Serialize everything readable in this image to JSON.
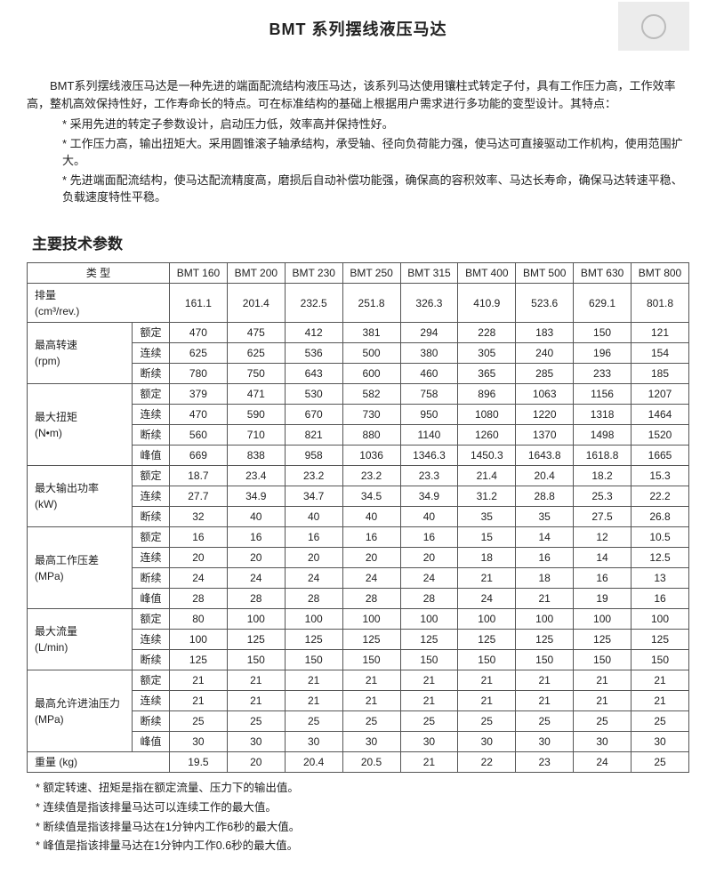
{
  "title": "BMT  系列摆线液压马达",
  "intro": "BMT系列摆线液压马达是一种先进的端面配流结构液压马达，该系列马达使用镶柱式转定子付，具有工作压力高，工作效率高，整机高效保持性好，工作寿命长的特点。可在标准结构的基础上根据用户需求进行多功能的变型设计。其特点：",
  "features": [
    "采用先进的转定子参数设计，启动压力低，效率高并保持性好。",
    "工作压力高，输出扭矩大。采用圆锥滚子轴承结构，承受轴、径向负荷能力强，使马达可直接驱动工作机构，使用范围扩大。",
    "先进端面配流结构，使马达配流精度高，磨损后自动补偿功能强，确保高的容积效率、马达长寿命，确保马达转速平稳、负载速度特性平稳。"
  ],
  "section_header": "主要技术参数",
  "type_label": "类    型",
  "models": [
    "BMT 160",
    "BMT 200",
    "BMT 230",
    "BMT 250",
    "BMT 315",
    "BMT 400",
    "BMT 500",
    "BMT 630",
    "BMT 800"
  ],
  "disp_label": "排量\n(cm³/rev.)",
  "disp_vals": [
    "161.1",
    "201.4",
    "232.5",
    "251.8",
    "326.3",
    "410.9",
    "523.6",
    "629.1",
    "801.8"
  ],
  "groups": [
    {
      "label": "最高转速\n(rpm)",
      "subs": [
        "额定",
        "连续",
        "断续"
      ],
      "rows": [
        [
          "470",
          "475",
          "412",
          "381",
          "294",
          "228",
          "183",
          "150",
          "121"
        ],
        [
          "625",
          "625",
          "536",
          "500",
          "380",
          "305",
          "240",
          "196",
          "154"
        ],
        [
          "780",
          "750",
          "643",
          "600",
          "460",
          "365",
          "285",
          "233",
          "185"
        ]
      ]
    },
    {
      "label": "最大扭矩\n(N•m)",
      "subs": [
        "额定",
        "连续",
        "断续",
        "峰值"
      ],
      "rows": [
        [
          "379",
          "471",
          "530",
          "582",
          "758",
          "896",
          "1063",
          "1156",
          "1207"
        ],
        [
          "470",
          "590",
          "670",
          "730",
          "950",
          "1080",
          "1220",
          "1318",
          "1464"
        ],
        [
          "560",
          "710",
          "821",
          "880",
          "1140",
          "1260",
          "1370",
          "1498",
          "1520"
        ],
        [
          "669",
          "838",
          "958",
          "1036",
          "1346.3",
          "1450.3",
          "1643.8",
          "1618.8",
          "1665"
        ]
      ]
    },
    {
      "label": "最大输出功率\n(kW)",
      "subs": [
        "额定",
        "连续",
        "断续"
      ],
      "rows": [
        [
          "18.7",
          "23.4",
          "23.2",
          "23.2",
          "23.3",
          "21.4",
          "20.4",
          "18.2",
          "15.3"
        ],
        [
          "27.7",
          "34.9",
          "34.7",
          "34.5",
          "34.9",
          "31.2",
          "28.8",
          "25.3",
          "22.2"
        ],
        [
          "32",
          "40",
          "40",
          "40",
          "40",
          "35",
          "35",
          "27.5",
          "26.8"
        ]
      ]
    },
    {
      "label": "最高工作压差\n(MPa)",
      "subs": [
        "额定",
        "连续",
        "断续",
        "峰值"
      ],
      "rows": [
        [
          "16",
          "16",
          "16",
          "16",
          "16",
          "15",
          "14",
          "12",
          "10.5"
        ],
        [
          "20",
          "20",
          "20",
          "20",
          "20",
          "18",
          "16",
          "14",
          "12.5"
        ],
        [
          "24",
          "24",
          "24",
          "24",
          "24",
          "21",
          "18",
          "16",
          "13"
        ],
        [
          "28",
          "28",
          "28",
          "28",
          "28",
          "24",
          "21",
          "19",
          "16"
        ]
      ]
    },
    {
      "label": "最大流量\n(L/min)",
      "subs": [
        "额定",
        "连续",
        "断续"
      ],
      "rows": [
        [
          "80",
          "100",
          "100",
          "100",
          "100",
          "100",
          "100",
          "100",
          "100"
        ],
        [
          "100",
          "125",
          "125",
          "125",
          "125",
          "125",
          "125",
          "125",
          "125"
        ],
        [
          "125",
          "150",
          "150",
          "150",
          "150",
          "150",
          "150",
          "150",
          "150"
        ]
      ]
    },
    {
      "label": "最高允许进油压力\n(MPa)",
      "subs": [
        "额定",
        "连续",
        "断续",
        "峰值"
      ],
      "rows": [
        [
          "21",
          "21",
          "21",
          "21",
          "21",
          "21",
          "21",
          "21",
          "21"
        ],
        [
          "21",
          "21",
          "21",
          "21",
          "21",
          "21",
          "21",
          "21",
          "21"
        ],
        [
          "25",
          "25",
          "25",
          "25",
          "25",
          "25",
          "25",
          "25",
          "25"
        ],
        [
          "30",
          "30",
          "30",
          "30",
          "30",
          "30",
          "30",
          "30",
          "30"
        ]
      ]
    }
  ],
  "weight_label": "重量   (kg)",
  "weight_vals": [
    "19.5",
    "20",
    "20.4",
    "20.5",
    "21",
    "22",
    "23",
    "24",
    "25"
  ],
  "notes": [
    "额定转速、扭矩是指在额定流量、压力下的输出值。",
    "连续值是指该排量马达可以连续工作的最大值。",
    "断续值是指该排量马达在1分钟内工作6秒的最大值。",
    "峰值是指该排量马达在1分钟内工作0.6秒的最大值。"
  ]
}
